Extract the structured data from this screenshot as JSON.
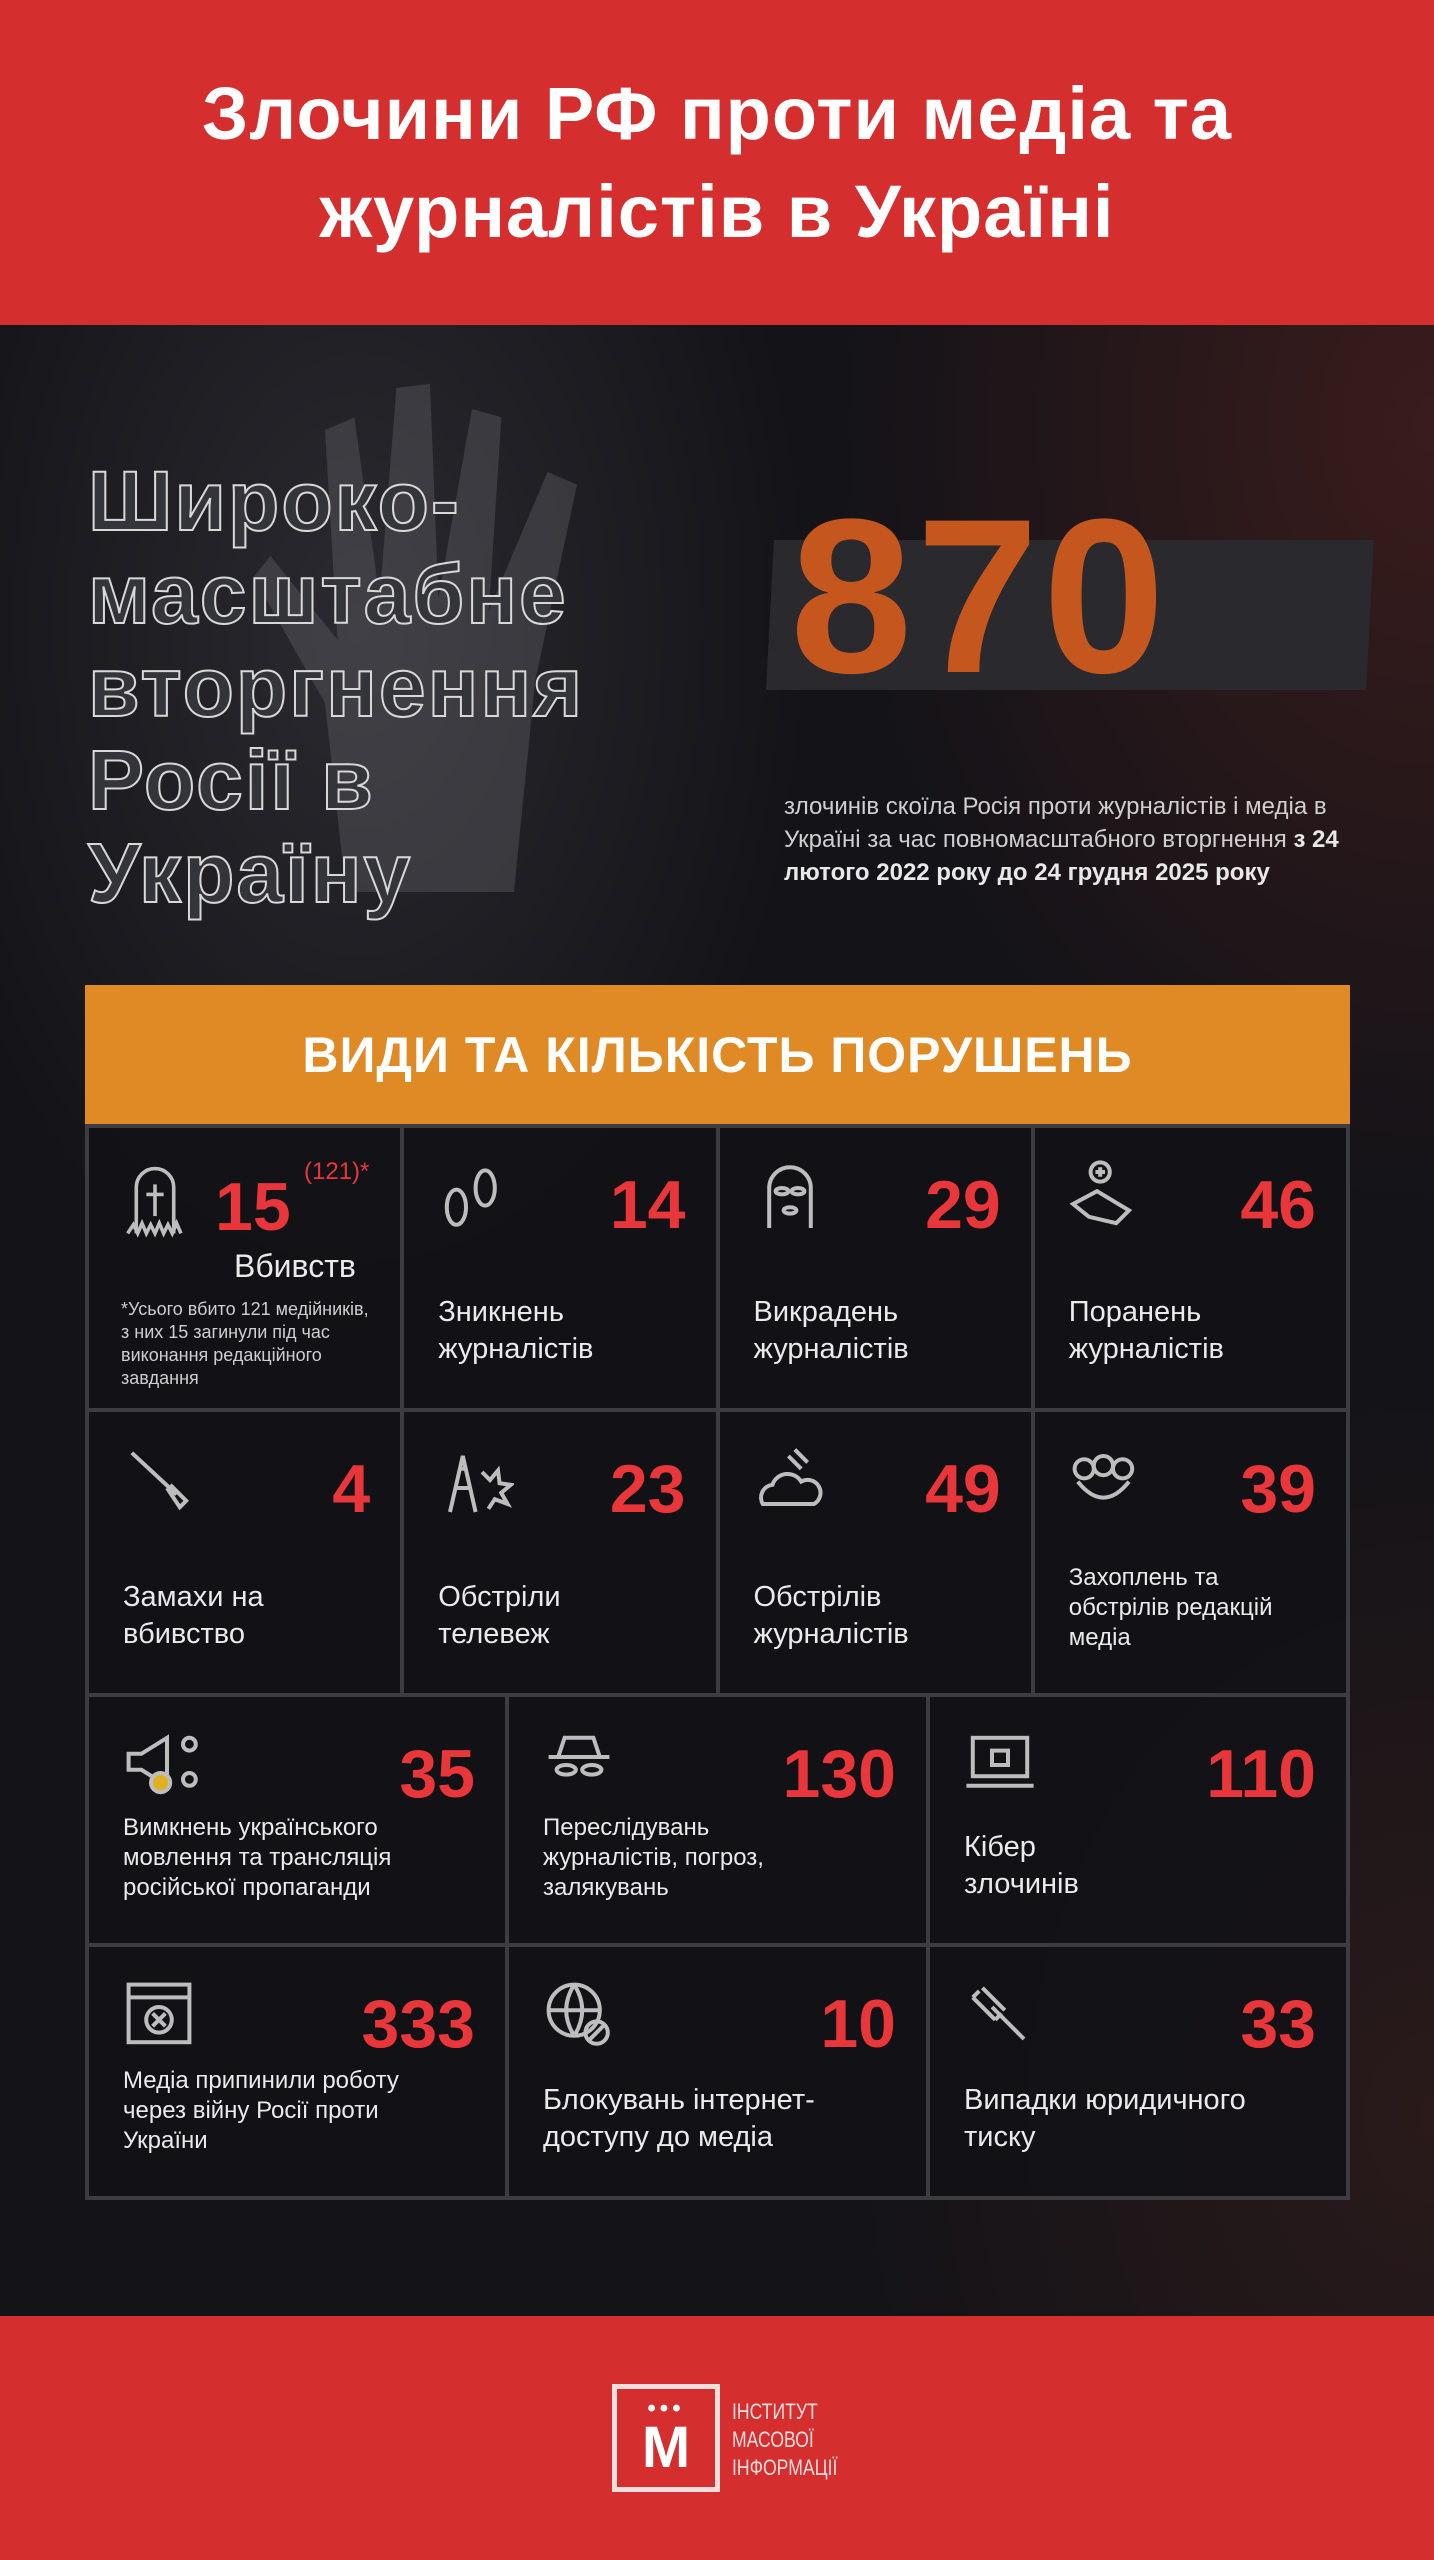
{
  "header": {
    "title_line1": "Злочини РФ проти медіа та",
    "title_line2": "журналістів в Україні"
  },
  "hero": {
    "outline_lines": [
      "Широко-",
      "масштабне",
      "вторгнення",
      "Росії в",
      "Україну"
    ],
    "total": "870",
    "description": "злочинів скоїла Росія проти журналістів і медіа в Україні за час повномасштабного вторгнення ",
    "description_bold": "з 24 лютого 2022 року до 24 грудня 2025 року"
  },
  "section_title": "ВИДИ ТА КІЛЬКІСТЬ ПОРУШЕНЬ",
  "colors": {
    "header_red": "#d42e2e",
    "accent_orange": "#df8a24",
    "number_red": "#e8363a",
    "background": "#131318"
  },
  "killed": {
    "number": "15",
    "total": "(121)*",
    "label": "Вбивств",
    "note": "*Усього вбито 121 медійників, з них 15 загинули під час виконання редакційного завдання",
    "icon": "gravestone-icon"
  },
  "stats": [
    {
      "number": "14",
      "label": "Зникнень журналістів",
      "icon": "footprints-icon"
    },
    {
      "number": "29",
      "label": "Викрадень журналістів",
      "icon": "balaclava-icon"
    },
    {
      "number": "46",
      "label": "Поранень журналістів",
      "icon": "wounded-hand-icon"
    },
    {
      "number": "4",
      "label": "Замахи на вбивство",
      "icon": "knife-icon"
    },
    {
      "number": "23",
      "label": "Обстріли телевеж",
      "icon": "tv-tower-explosion-icon"
    },
    {
      "number": "49",
      "label": "Обстрілів журналістів",
      "icon": "shelling-icon"
    },
    {
      "number": "39",
      "label": "Захоплень та обстрілів редакцій медіа",
      "icon": "brass-knuckles-icon"
    },
    {
      "number": "35",
      "label": "Вимкнень українського мовлення та трансляція російської пропаганди",
      "icon": "megaphone-icon"
    },
    {
      "number": "130",
      "label": "Переслідувань журналістів, погроз, залякувань",
      "icon": "spy-icon"
    },
    {
      "number": "110",
      "label": "Кібер злочинів",
      "icon": "laptop-hacker-icon"
    },
    {
      "number": "333",
      "label": "Медіа припинили роботу через війну Росії проти України",
      "icon": "closed-media-icon"
    },
    {
      "number": "10",
      "label": "Блокувань інтернет-доступу до медіа",
      "icon": "blocked-globe-icon"
    },
    {
      "number": "33",
      "label": "Випадки юридичного тиску",
      "icon": "gavel-icon"
    }
  ],
  "footer": {
    "logo_letter": "М",
    "logo_text": [
      "ІНСТИТУТ",
      "МАСОВОЇ",
      "ІНФОРМАЦІЇ"
    ]
  }
}
